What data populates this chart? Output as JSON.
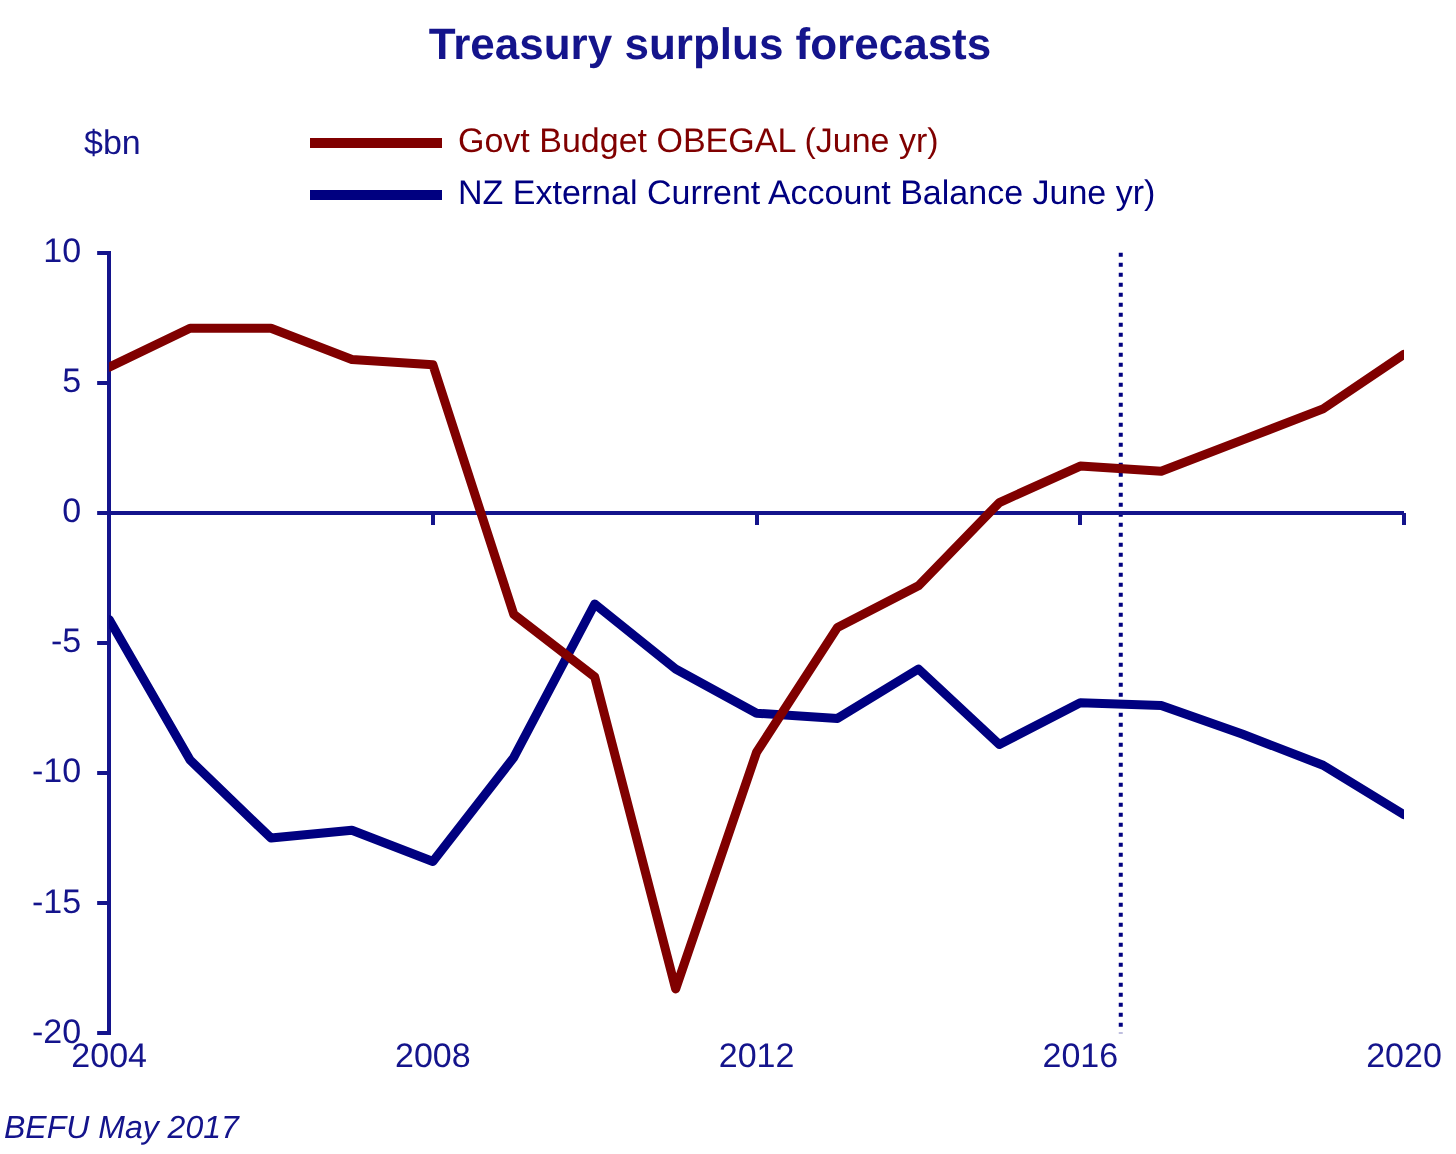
{
  "chart_data": {
    "type": "line",
    "title": "Treasury surplus forecasts",
    "ylabel": "$bn",
    "x": [
      2004,
      2005,
      2006,
      2007,
      2008,
      2009,
      2010,
      2011,
      2012,
      2013,
      2014,
      2015,
      2016,
      2017,
      2018,
      2019,
      2020
    ],
    "series": [
      {
        "name": "Govt Budget OBEGAL (June yr)",
        "color": "#800000",
        "values": [
          5.6,
          7.1,
          7.1,
          5.9,
          5.7,
          -3.9,
          -6.3,
          -18.3,
          -9.2,
          -4.4,
          -2.8,
          0.4,
          1.8,
          1.6,
          2.8,
          4.0,
          6.1
        ]
      },
      {
        "name": "NZ External Current Account Balance June yr)",
        "color": "#000080",
        "values": [
          -4.1,
          -9.5,
          -12.5,
          -12.2,
          -13.4,
          -9.4,
          -3.5,
          -6.0,
          -7.7,
          -7.9,
          -6.0,
          -8.9,
          -7.3,
          -7.4,
          -8.5,
          -9.7,
          -11.6
        ]
      }
    ],
    "xlim": [
      2004,
      2020
    ],
    "xticks": [
      2004,
      2008,
      2012,
      2016,
      2020
    ],
    "ylim": [
      -20,
      10
    ],
    "yticks": [
      -20,
      -15,
      -10,
      -5,
      0,
      5,
      10
    ],
    "ref_lines": [
      {
        "axis": "x",
        "value": 2016.5,
        "color": "#000080",
        "line_style": "dotted"
      },
      {
        "axis": "y",
        "value": 0,
        "color": "#14148c",
        "line_style": "solid"
      }
    ],
    "legend": "top",
    "marker": "none",
    "line_style": "solid",
    "annotations": [
      "BEFU May 2017"
    ]
  }
}
